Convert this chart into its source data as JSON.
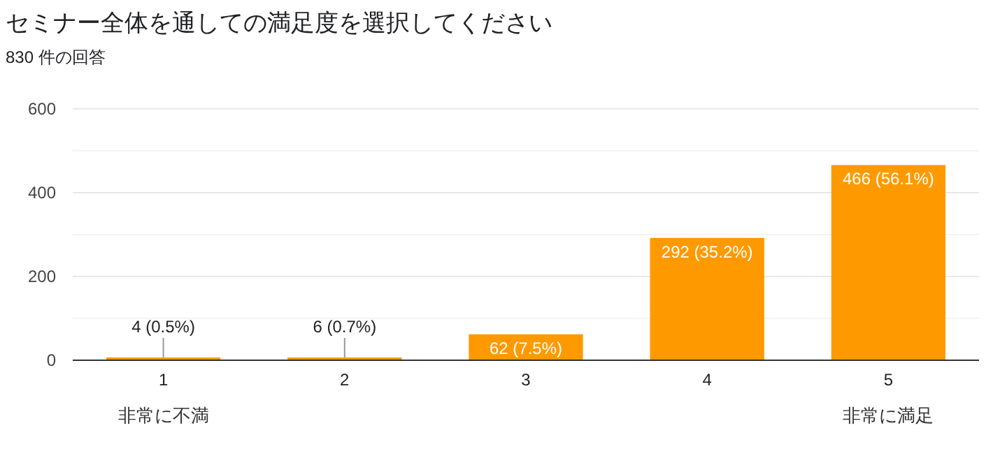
{
  "chart_data": {
    "type": "bar",
    "title": "セミナー全体を通しての満足度を選択してください",
    "subtitle": "830 件の回答",
    "categories": [
      "1",
      "2",
      "3",
      "4",
      "5"
    ],
    "values": [
      4,
      6,
      62,
      292,
      466
    ],
    "value_labels": [
      "4 (0.5%)",
      "6 (0.7%)",
      "62 (7.5%)",
      "292 (35.2%)",
      "466 (56.1%)"
    ],
    "color": "#ff9900",
    "ylim": [
      0,
      600
    ],
    "yticks": [
      0,
      {
        "value": 100,
        "label": null
      },
      200,
      {
        "value": 300,
        "label": null
      },
      400,
      {
        "value": 500,
        "label": null
      },
      600
    ],
    "grid": "y",
    "annotations": [
      "非常に不満",
      "非常に満足"
    ]
  }
}
